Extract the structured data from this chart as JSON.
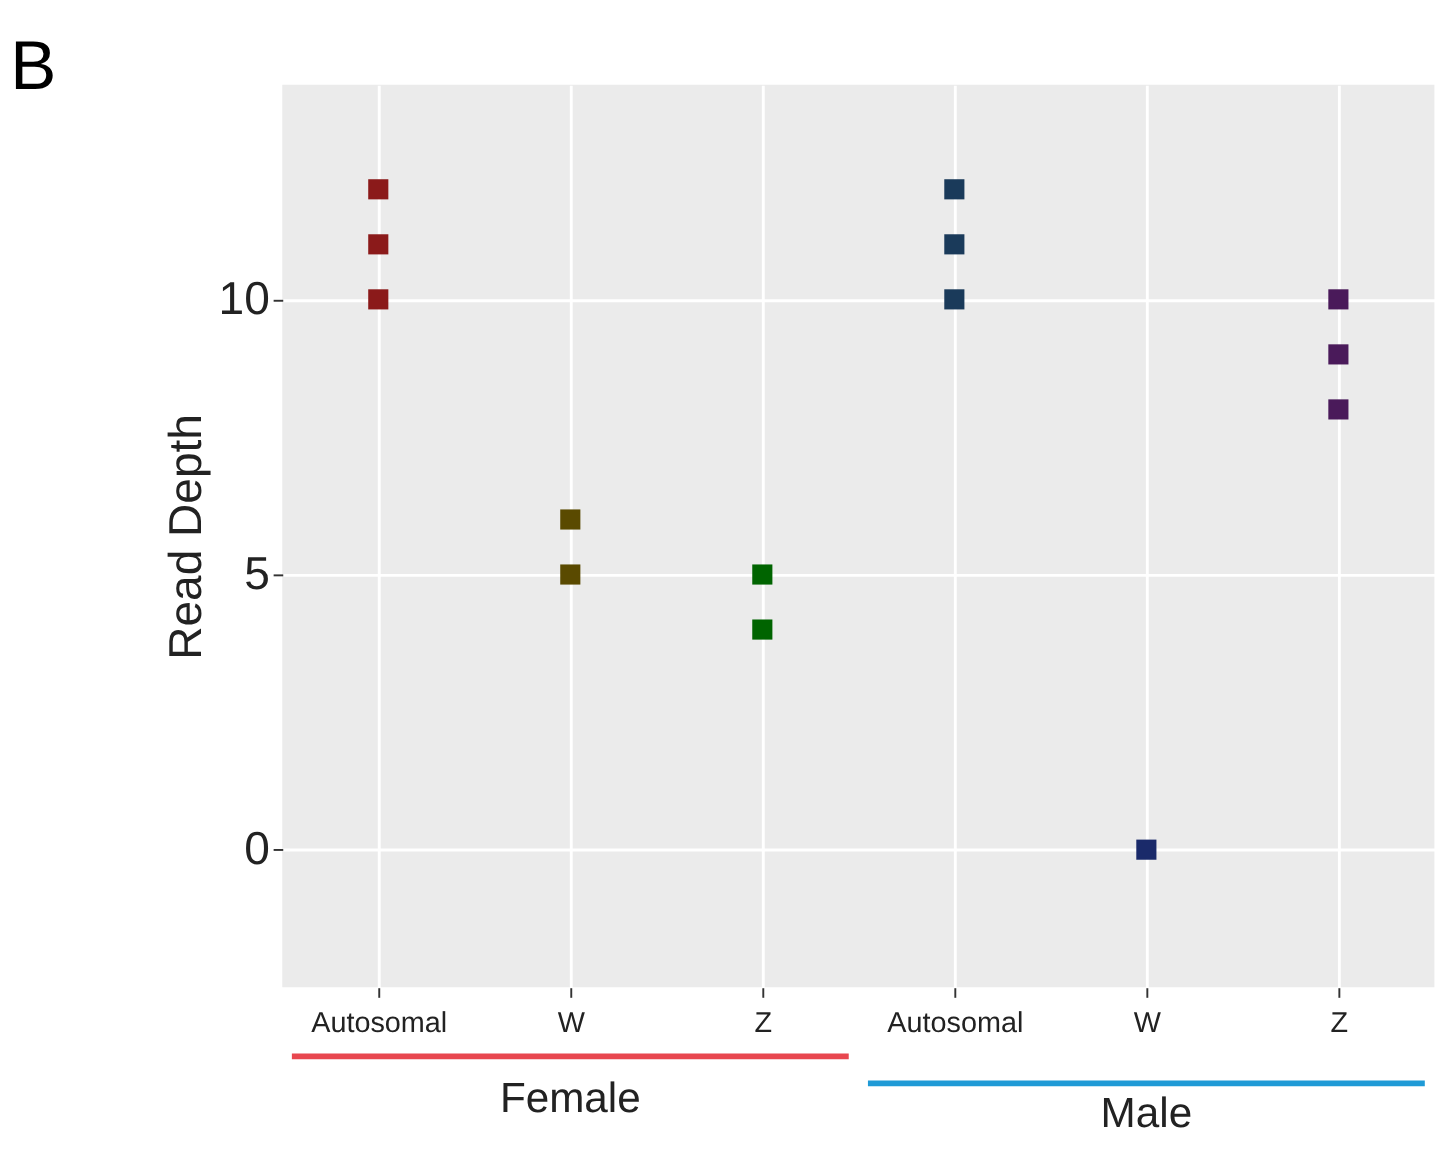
{
  "chart_data": {
    "type": "scatter",
    "title": "B",
    "ylabel": "Read Depth",
    "categories": [
      "Autosomal",
      "W",
      "Z",
      "Autosomal",
      "W",
      "Z"
    ],
    "series": [
      {
        "colors": [
          "#8b1a1a",
          "#5a4a00",
          "#006400",
          "#1a3a5a",
          "#1a2a6a",
          "#4a1a5a"
        ],
        "values": [
          12,
          6,
          5,
          12,
          0,
          10
        ]
      },
      {
        "colors": [
          "#8b1a1a",
          "#5a4a00",
          "#006400",
          "#1a3a5a",
          "#1a2a6a",
          "#4a1a5a"
        ],
        "values": [
          11,
          5,
          4,
          11,
          null,
          9
        ]
      },
      {
        "colors": [
          "#8b1a1a",
          "#5a4a00",
          "#006400",
          "#1a3a5a",
          "#1a2a6a",
          "#4a1a5a"
        ],
        "values": [
          10,
          null,
          null,
          10,
          null,
          8
        ]
      }
    ],
    "ylim": [
      -2.5,
      13.9
    ],
    "yticks": [
      0,
      5,
      10
    ],
    "grid": true,
    "marker": "square",
    "annotations": [
      "Female",
      "Male"
    ]
  }
}
